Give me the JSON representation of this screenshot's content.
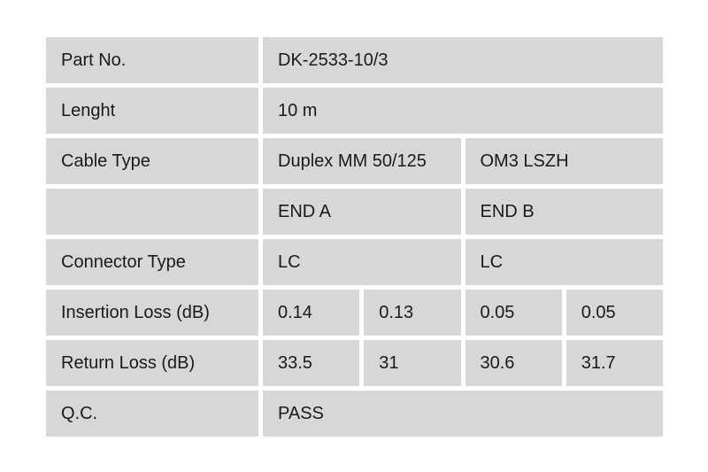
{
  "colors": {
    "page_background": "#ffffff",
    "cell_background": "#d7d7d7",
    "text": "#1a1a1a"
  },
  "table": {
    "rows": [
      {
        "label": "Part No.",
        "values": [
          "DK-2533-10/3"
        ]
      },
      {
        "label": "Lenght",
        "values": [
          "10 m"
        ]
      },
      {
        "label": "Cable Type",
        "values": [
          "Duplex MM 50/125",
          "OM3 LSZH"
        ]
      },
      {
        "label": "",
        "values": [
          "END A",
          "END B"
        ]
      },
      {
        "label": "Connector Type",
        "values": [
          "LC",
          "LC"
        ]
      },
      {
        "label": "Insertion Loss (dB)",
        "values": [
          "0.14",
          "0.13",
          "0.05",
          "0.05"
        ]
      },
      {
        "label": "Return Loss (dB)",
        "values": [
          "33.5",
          "31",
          "30.6",
          "31.7"
        ]
      },
      {
        "label": "Q.C.",
        "values": [
          "PASS"
        ]
      }
    ]
  }
}
